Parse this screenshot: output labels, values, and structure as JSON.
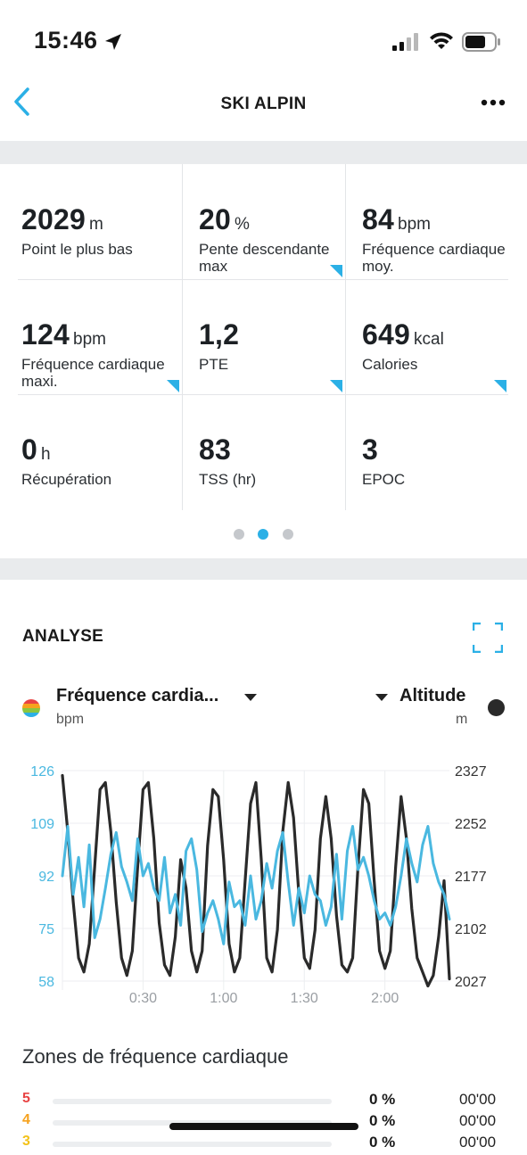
{
  "status_bar": {
    "time": "15:46",
    "icons": [
      "location-arrow-icon",
      "cellular-signal-icon",
      "wifi-icon",
      "battery-icon"
    ]
  },
  "nav": {
    "title": "SKI ALPIN",
    "icons": [
      "back-chevron-icon",
      "more-options-icon"
    ]
  },
  "accent_color": "#2bb0e6",
  "stats": [
    {
      "value": "2029",
      "unit": "m",
      "label": "Point le plus bas",
      "corner": false
    },
    {
      "value": "20",
      "unit": "%",
      "label": "Pente descendante max",
      "corner": true
    },
    {
      "value": "84",
      "unit": "bpm",
      "label": "Fréquence cardiaque moy.",
      "corner": false
    },
    {
      "value": "124",
      "unit": "bpm",
      "label": "Fréquence cardiaque maxi.",
      "corner": true
    },
    {
      "value": "1,2",
      "unit": "",
      "label": "PTE",
      "corner": true
    },
    {
      "value": "649",
      "unit": "kcal",
      "label": "Calories",
      "corner": true
    },
    {
      "value": "0",
      "unit": "h",
      "label": "Récupération",
      "corner": false
    },
    {
      "value": "83",
      "unit": "",
      "label": "TSS (hr)",
      "corner": false
    },
    {
      "value": "3",
      "unit": "",
      "label": "EPOC",
      "corner": false
    }
  ],
  "pager": {
    "pages": 3,
    "active": 1
  },
  "analyse": {
    "title": "ANALYSE",
    "left_metric": "Fréquence cardia...",
    "left_unit": "bpm",
    "right_metric": "Altitude",
    "right_unit": "m"
  },
  "chart_data": {
    "type": "line",
    "x_ticks": [
      "0:30",
      "1:00",
      "1:30",
      "2:00"
    ],
    "x_tick_minutes": [
      30,
      60,
      90,
      120
    ],
    "x_range_minutes": [
      0,
      144
    ],
    "y_left": {
      "label": "bpm",
      "ticks": [
        "126",
        "109",
        "92",
        "75",
        "58"
      ],
      "range": [
        58,
        126
      ]
    },
    "y_right": {
      "label": "m",
      "ticks": [
        "2327",
        "2252",
        "2177",
        "2102",
        "2027"
      ],
      "range": [
        2027,
        2327
      ]
    },
    "grid": true,
    "series": [
      {
        "name": "Fréquence cardia...",
        "axis": "left",
        "color": "#4ab8e0",
        "x": [
          0,
          2,
          4,
          6,
          8,
          10,
          12,
          14,
          16,
          18,
          20,
          22,
          24,
          26,
          28,
          30,
          32,
          34,
          36,
          38,
          40,
          42,
          44,
          46,
          48,
          50,
          52,
          54,
          56,
          58,
          60,
          62,
          64,
          66,
          68,
          70,
          72,
          74,
          76,
          78,
          80,
          82,
          84,
          86,
          88,
          90,
          92,
          94,
          96,
          98,
          100,
          102,
          104,
          106,
          108,
          110,
          112,
          114,
          116,
          118,
          120,
          122,
          124,
          126,
          128,
          130,
          132,
          134,
          136,
          138,
          140,
          142,
          144
        ],
        "y": [
          92,
          108,
          86,
          98,
          82,
          102,
          72,
          78,
          88,
          99,
          106,
          95,
          90,
          84,
          104,
          92,
          96,
          88,
          84,
          98,
          80,
          86,
          76,
          100,
          104,
          94,
          74,
          80,
          84,
          78,
          70,
          90,
          82,
          84,
          76,
          92,
          78,
          84,
          96,
          88,
          100,
          106,
          90,
          76,
          88,
          80,
          92,
          86,
          84,
          76,
          82,
          99,
          78,
          100,
          108,
          94,
          98,
          92,
          84,
          78,
          80,
          76,
          82,
          92,
          104,
          96,
          90,
          102,
          108,
          96,
          90,
          86,
          78
        ]
      },
      {
        "name": "Altitude",
        "axis": "right",
        "color": "#2a2a2a",
        "x": [
          0,
          2,
          4,
          6,
          8,
          10,
          12,
          14,
          16,
          18,
          20,
          22,
          24,
          26,
          28,
          30,
          32,
          34,
          36,
          38,
          40,
          42,
          44,
          46,
          48,
          50,
          52,
          54,
          56,
          58,
          60,
          62,
          64,
          66,
          68,
          70,
          72,
          74,
          76,
          78,
          80,
          82,
          84,
          86,
          88,
          90,
          92,
          94,
          96,
          98,
          100,
          102,
          104,
          106,
          108,
          110,
          112,
          114,
          116,
          118,
          120,
          122,
          124,
          126,
          128,
          130,
          132,
          134,
          136,
          138,
          140,
          142,
          144
        ],
        "y": [
          2320,
          2240,
          2140,
          2060,
          2040,
          2080,
          2190,
          2300,
          2310,
          2240,
          2140,
          2060,
          2035,
          2070,
          2190,
          2300,
          2310,
          2230,
          2110,
          2050,
          2035,
          2090,
          2200,
          2160,
          2070,
          2040,
          2070,
          2220,
          2300,
          2290,
          2200,
          2080,
          2040,
          2060,
          2170,
          2280,
          2310,
          2200,
          2060,
          2040,
          2100,
          2240,
          2310,
          2260,
          2150,
          2060,
          2045,
          2100,
          2230,
          2290,
          2230,
          2120,
          2050,
          2040,
          2060,
          2190,
          2300,
          2280,
          2170,
          2070,
          2045,
          2070,
          2190,
          2290,
          2230,
          2130,
          2060,
          2040,
          2020,
          2035,
          2090,
          2170,
          2030
        ]
      }
    ]
  },
  "zones": {
    "title": "Zones de fréquence cardiaque",
    "rows": [
      {
        "zone": "5",
        "color": "#e84343",
        "percent": "0 %",
        "time": "00'00"
      },
      {
        "zone": "4",
        "color": "#f6a21e",
        "percent": "0 %",
        "time": "00'00"
      },
      {
        "zone": "3",
        "color": "#f3c21a",
        "percent": "0 %",
        "time": "00'00"
      }
    ]
  }
}
